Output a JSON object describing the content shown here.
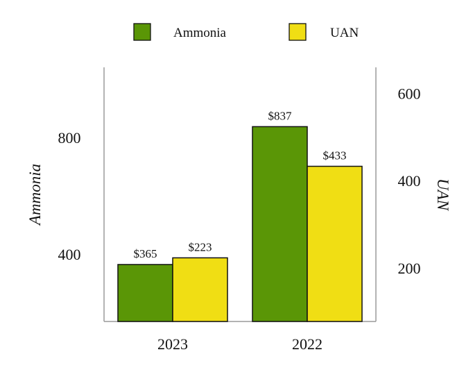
{
  "chart_data": {
    "type": "bar",
    "categories": [
      "2023",
      "2022"
    ],
    "series": [
      {
        "name": "Ammonia",
        "axis": "left",
        "color": "#5a9606",
        "values": [
          365,
          837
        ],
        "labels": [
          "$365",
          "$837"
        ]
      },
      {
        "name": "UAN",
        "axis": "right",
        "color": "#f0de14",
        "values": [
          223,
          433
        ],
        "labels": [
          "$223",
          "$433"
        ]
      }
    ],
    "ylabel": "Ammonia",
    "y2label": "UAN",
    "ylim": [
      170,
      1040
    ],
    "y2lim": [
      77,
      660
    ],
    "yticks": [
      "400",
      "800"
    ],
    "y2ticks": [
      "200",
      "400",
      "600"
    ],
    "legend_position": "top-center",
    "grid": false
  }
}
